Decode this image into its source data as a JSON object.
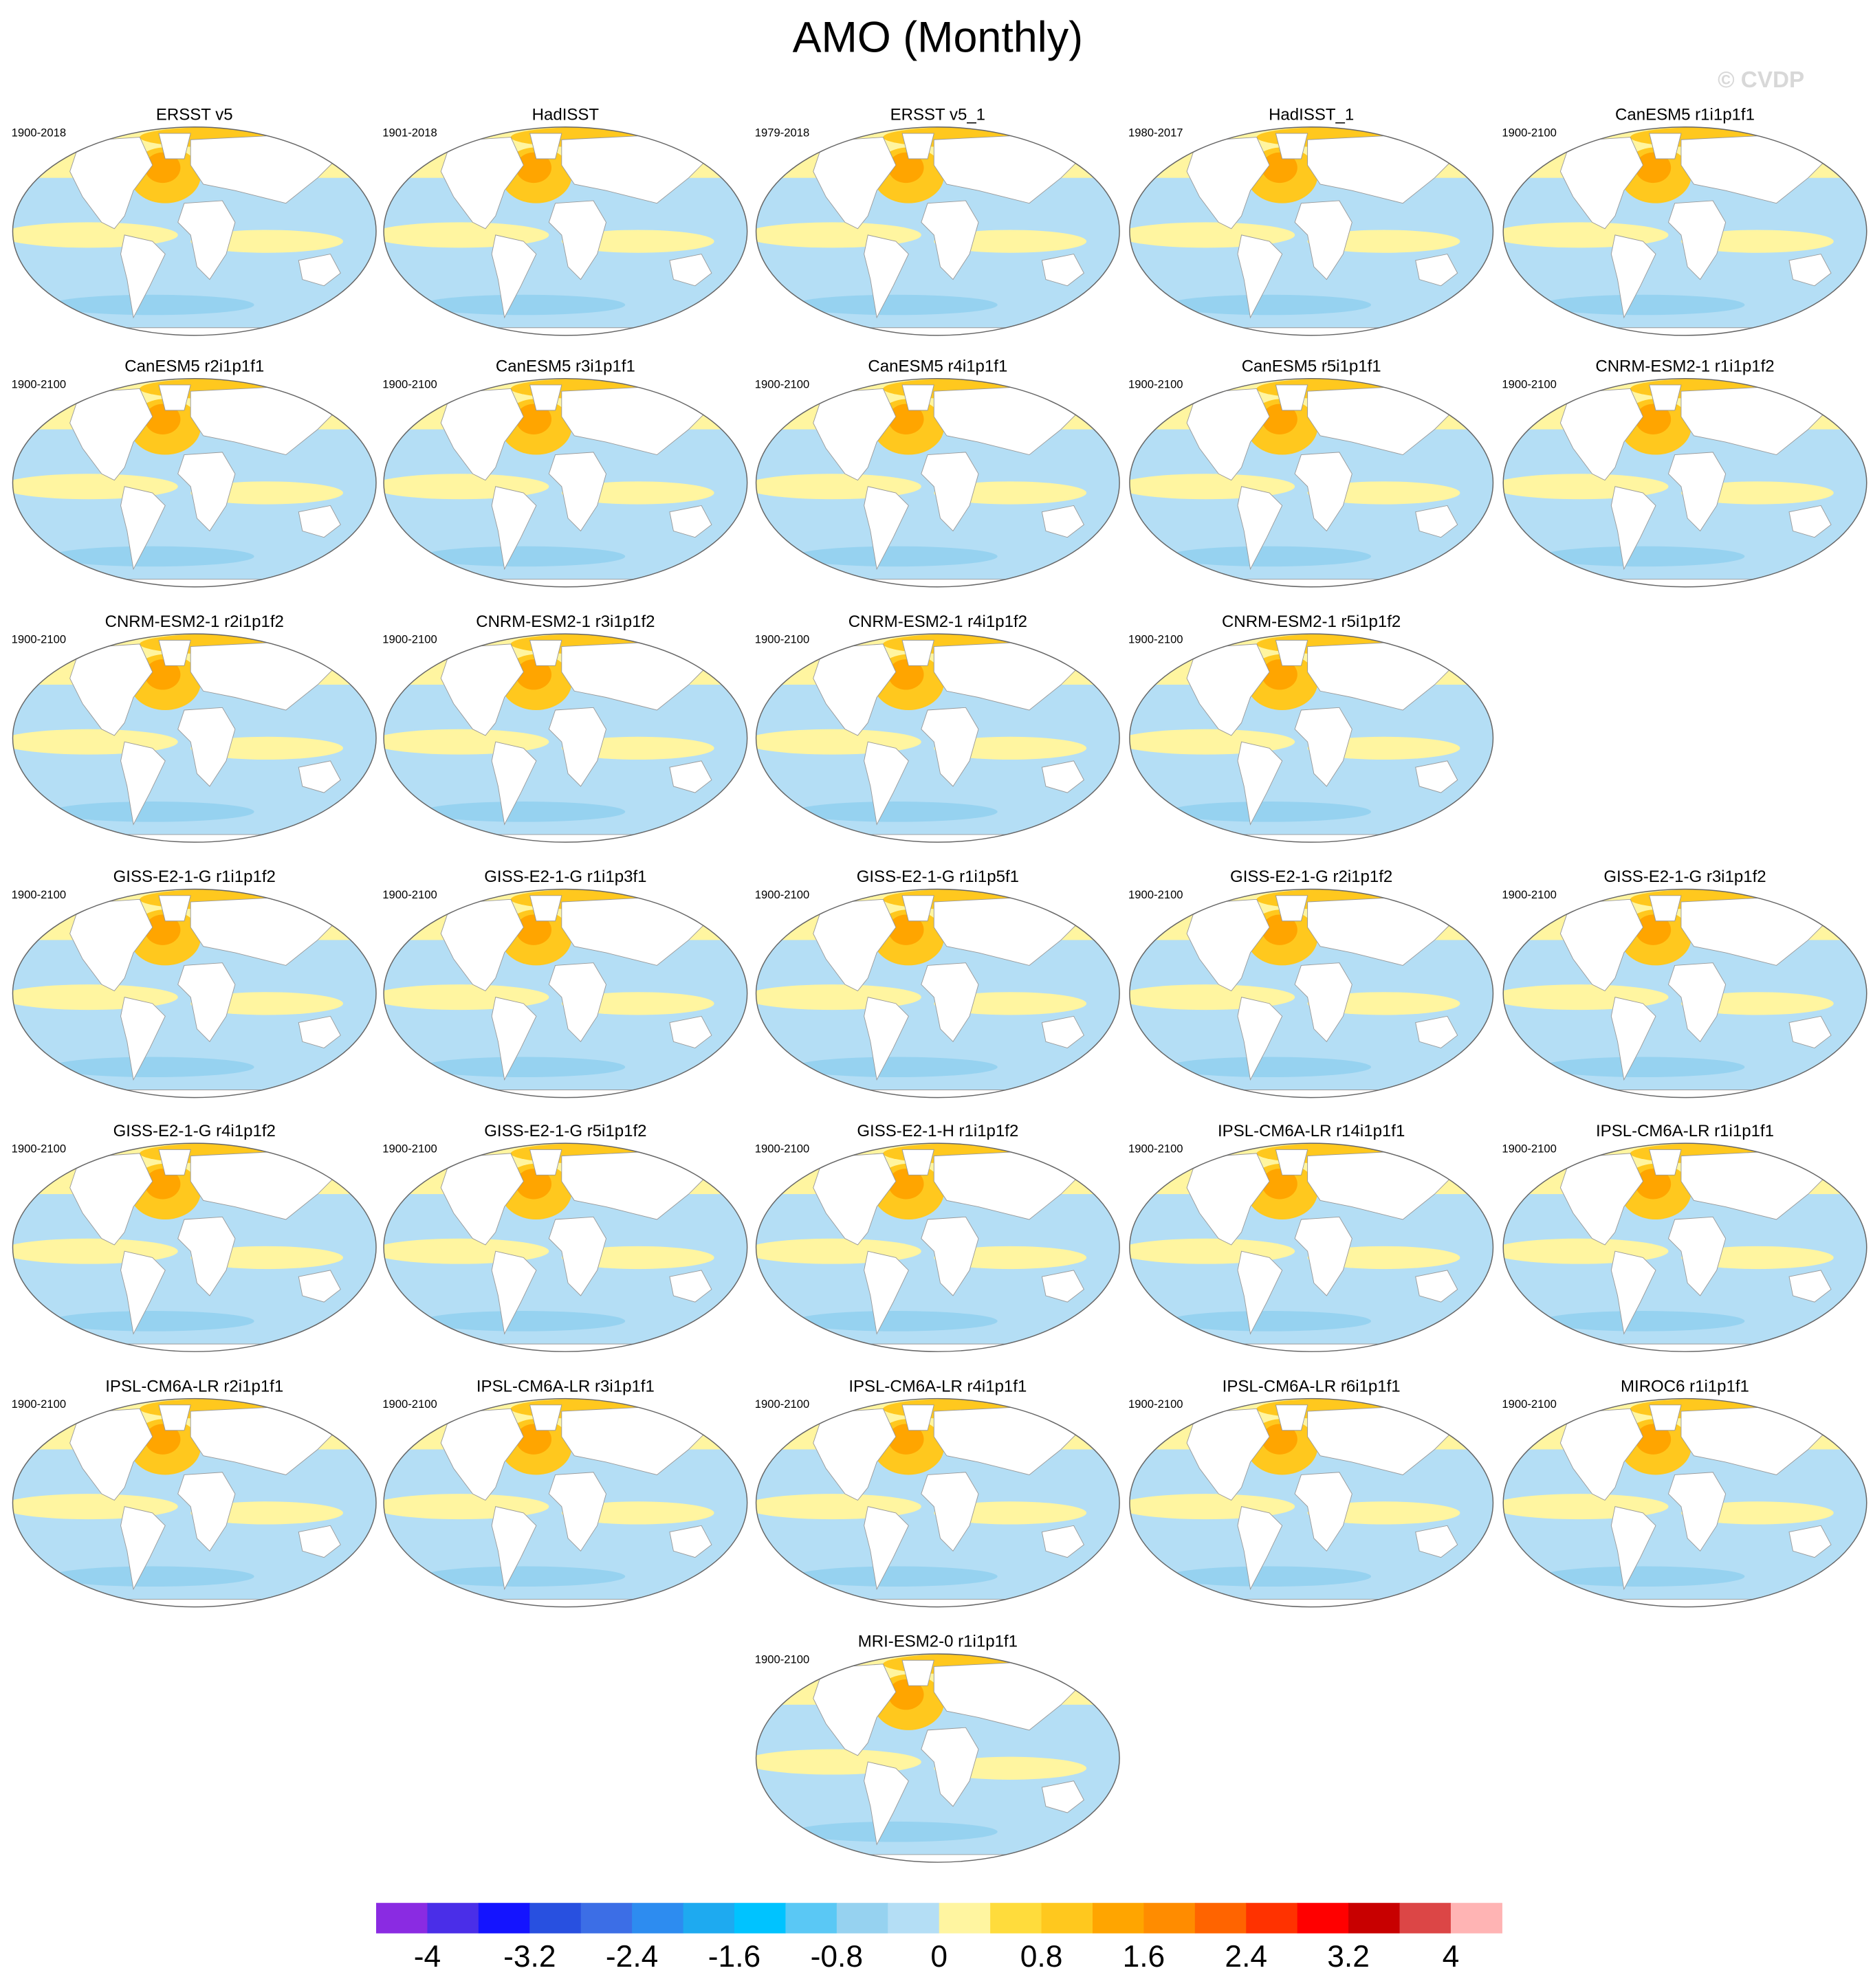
{
  "chart_data": {
    "type": "contour-map-grid",
    "title": "AMO (Monthly)",
    "credit": "© CVDP",
    "panels": [
      {
        "title": "ERSST v5",
        "period": "1900-2018"
      },
      {
        "title": "HadISST",
        "period": "1901-2018"
      },
      {
        "title": "ERSST v5_1",
        "period": "1979-2018"
      },
      {
        "title": "HadISST_1",
        "period": "1980-2017"
      },
      {
        "title": "CanESM5 r1i1p1f1",
        "period": "1900-2100"
      },
      {
        "title": "CanESM5 r2i1p1f1",
        "period": "1900-2100"
      },
      {
        "title": "CanESM5 r3i1p1f1",
        "period": "1900-2100"
      },
      {
        "title": "CanESM5 r4i1p1f1",
        "period": "1900-2100"
      },
      {
        "title": "CanESM5 r5i1p1f1",
        "period": "1900-2100"
      },
      {
        "title": "CNRM-ESM2-1 r1i1p1f2",
        "period": "1900-2100"
      },
      {
        "title": "CNRM-ESM2-1 r2i1p1f2",
        "period": "1900-2100"
      },
      {
        "title": "CNRM-ESM2-1 r3i1p1f2",
        "period": "1900-2100"
      },
      {
        "title": "CNRM-ESM2-1 r4i1p1f2",
        "period": "1900-2100"
      },
      {
        "title": "CNRM-ESM2-1 r5i1p1f2",
        "period": "1900-2100"
      },
      {
        "title": "GISS-E2-1-G r1i1p1f2",
        "period": "1900-2100"
      },
      {
        "title": "GISS-E2-1-G r1i1p3f1",
        "period": "1900-2100"
      },
      {
        "title": "GISS-E2-1-G r1i1p5f1",
        "period": "1900-2100"
      },
      {
        "title": "GISS-E2-1-G r2i1p1f2",
        "period": "1900-2100"
      },
      {
        "title": "GISS-E2-1-G r3i1p1f2",
        "period": "1900-2100"
      },
      {
        "title": "GISS-E2-1-G r4i1p1f2",
        "period": "1900-2100"
      },
      {
        "title": "GISS-E2-1-G r5i1p1f2",
        "period": "1900-2100"
      },
      {
        "title": "GISS-E2-1-H r1i1p1f2",
        "period": "1900-2100"
      },
      {
        "title": "IPSL-CM6A-LR r14i1p1f1",
        "period": "1900-2100"
      },
      {
        "title": "IPSL-CM6A-LR r1i1p1f1",
        "period": "1900-2100"
      },
      {
        "title": "IPSL-CM6A-LR r2i1p1f1",
        "period": "1900-2100"
      },
      {
        "title": "IPSL-CM6A-LR r3i1p1f1",
        "period": "1900-2100"
      },
      {
        "title": "IPSL-CM6A-LR r4i1p1f1",
        "period": "1900-2100"
      },
      {
        "title": "IPSL-CM6A-LR r6i1p1f1",
        "period": "1900-2100"
      },
      {
        "title": "MIROC6 r1i1p1f1",
        "period": "1900-2100"
      },
      {
        "title": "MRI-ESM2-0 r1i1p1f1",
        "period": "1900-2100"
      }
    ],
    "colorbar": {
      "levels": [
        -4,
        -3.6,
        -3.2,
        -2.8,
        -2.4,
        -2,
        -1.6,
        -1.2,
        -0.8,
        -0.4,
        0,
        0.4,
        0.8,
        1.2,
        1.6,
        2,
        2.4,
        2.8,
        3.2,
        3.6,
        4
      ],
      "colors": [
        "#8a2be2",
        "#4a2ee8",
        "#1414ff",
        "#2850e0",
        "#3c6ee6",
        "#2d8cf0",
        "#1eaaf0",
        "#00c3ff",
        "#5ac8f5",
        "#96d2f0",
        "#b4def5",
        "#fff5a0",
        "#ffdc3c",
        "#ffc81e",
        "#ffa500",
        "#ff8c00",
        "#ff6400",
        "#ff3200",
        "#ff0000",
        "#c80000",
        "#dc4646",
        "#ffb4b4"
      ],
      "ticks": [
        -4,
        -3.2,
        -2.4,
        -1.6,
        -0.8,
        0,
        0.8,
        1.6,
        2.4,
        3.2,
        4
      ]
    }
  }
}
